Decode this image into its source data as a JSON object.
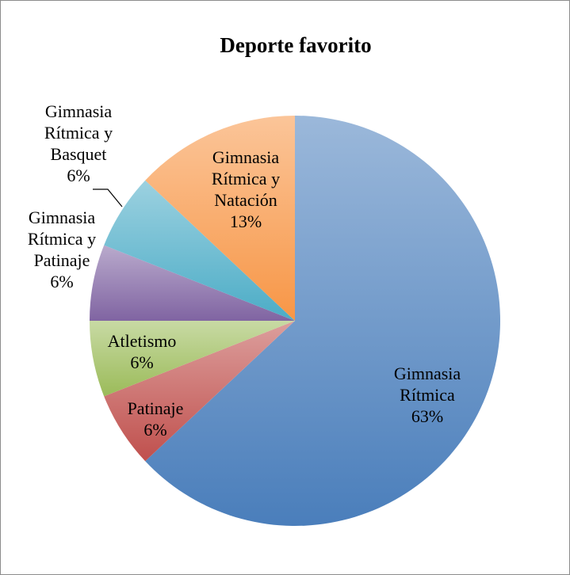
{
  "chart_data": {
    "type": "pie",
    "title": "Deporte favorito",
    "legend": "none",
    "slices": [
      {
        "label_lines": [
          "Gimnasia",
          "Rítmica"
        ],
        "value": 63,
        "value_label": "63%",
        "color": "#4a7ebb"
      },
      {
        "label_lines": [
          "Patinaje"
        ],
        "value": 6,
        "value_label": "6%",
        "color": "#c0504d"
      },
      {
        "label_lines": [
          "Atletismo"
        ],
        "value": 6,
        "value_label": "6%",
        "color": "#9bbb59"
      },
      {
        "label_lines": [
          "Gimnasia",
          "Rítmica y",
          "Patinaje"
        ],
        "value": 6,
        "value_label": "6%",
        "color": "#8064a2"
      },
      {
        "label_lines": [
          "Gimnasia",
          "Rítmica y",
          "Basquet"
        ],
        "value": 6,
        "value_label": "6%",
        "color": "#4bacc6"
      },
      {
        "label_lines": [
          "Gimnasia",
          "Rítmica y",
          "Natación"
        ],
        "value": 13,
        "value_label": "13%",
        "color": "#f79646"
      }
    ]
  }
}
